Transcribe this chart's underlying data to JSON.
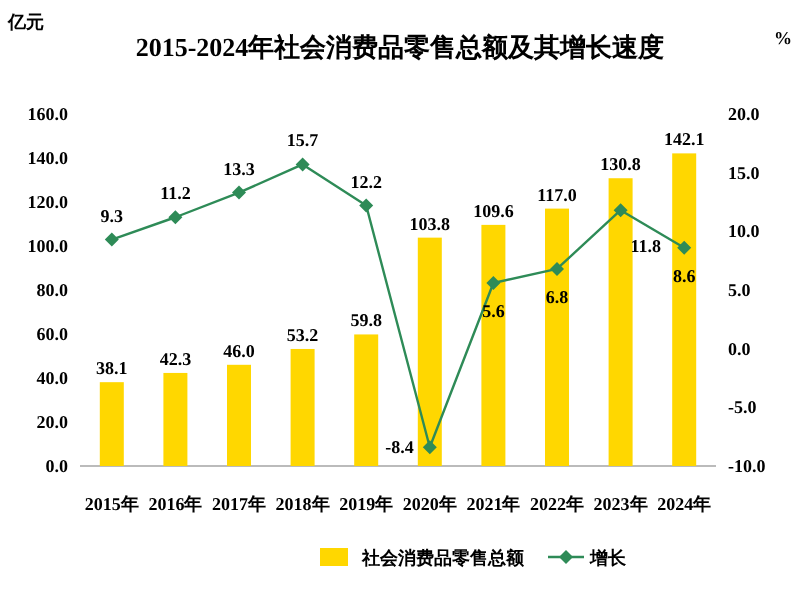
{
  "chart_data": {
    "type": "bar",
    "title": "2015-2024年社会消费品零售总额及其增长速度",
    "ylabel": "亿元",
    "y2label": "%",
    "categories": [
      "2015年",
      "2016年",
      "2017年",
      "2018年",
      "2019年",
      "2020年",
      "2021年",
      "2022年",
      "2023年",
      "2024年"
    ],
    "series": [
      {
        "name": "社会消费品零售总额",
        "color": "#ffd700",
        "values": [
          38.1,
          42.3,
          46.0,
          53.2,
          59.8,
          103.8,
          109.6,
          117.0,
          130.8,
          142.1
        ],
        "value_labels": [
          "38.1",
          "42.3",
          "46.0",
          "53.2",
          "59.8",
          "103.8",
          "109.6",
          "117.0",
          "130.8",
          "142.1"
        ]
      },
      {
        "name": "增长",
        "type": "line",
        "axis": "y2",
        "color": "#2e8b57",
        "marker": "diamond",
        "values": [
          9.3,
          11.2,
          13.3,
          15.7,
          12.2,
          -8.4,
          5.6,
          6.8,
          11.8,
          8.6
        ]
      }
    ],
    "ylim": [
      0,
      160
    ],
    "yticks": [
      {
        "value": 0,
        "label": "0.0"
      },
      {
        "value": 20,
        "label": "20.0"
      },
      {
        "value": 40,
        "label": "40.0"
      },
      {
        "value": 60,
        "label": "60.0"
      },
      {
        "value": 80,
        "label": "80.0"
      },
      {
        "value": 100,
        "label": "100.0"
      },
      {
        "value": 120,
        "label": "120.0"
      },
      {
        "value": 140,
        "label": "140.0"
      },
      {
        "value": 160,
        "label": "160.0"
      }
    ],
    "y2lim": [
      -10,
      20
    ],
    "y2ticks": [
      {
        "value": -10,
        "label": "-10.0"
      },
      {
        "value": -5,
        "label": "-5.0"
      },
      {
        "value": 0,
        "label": "0.0"
      },
      {
        "value": 5,
        "label": "5.0"
      },
      {
        "value": 10,
        "label": "10.0"
      },
      {
        "value": 15,
        "label": "15.0"
      },
      {
        "value": 20,
        "label": "20.0"
      }
    ],
    "data_labels": true,
    "legend": "bottom",
    "grid": false
  }
}
